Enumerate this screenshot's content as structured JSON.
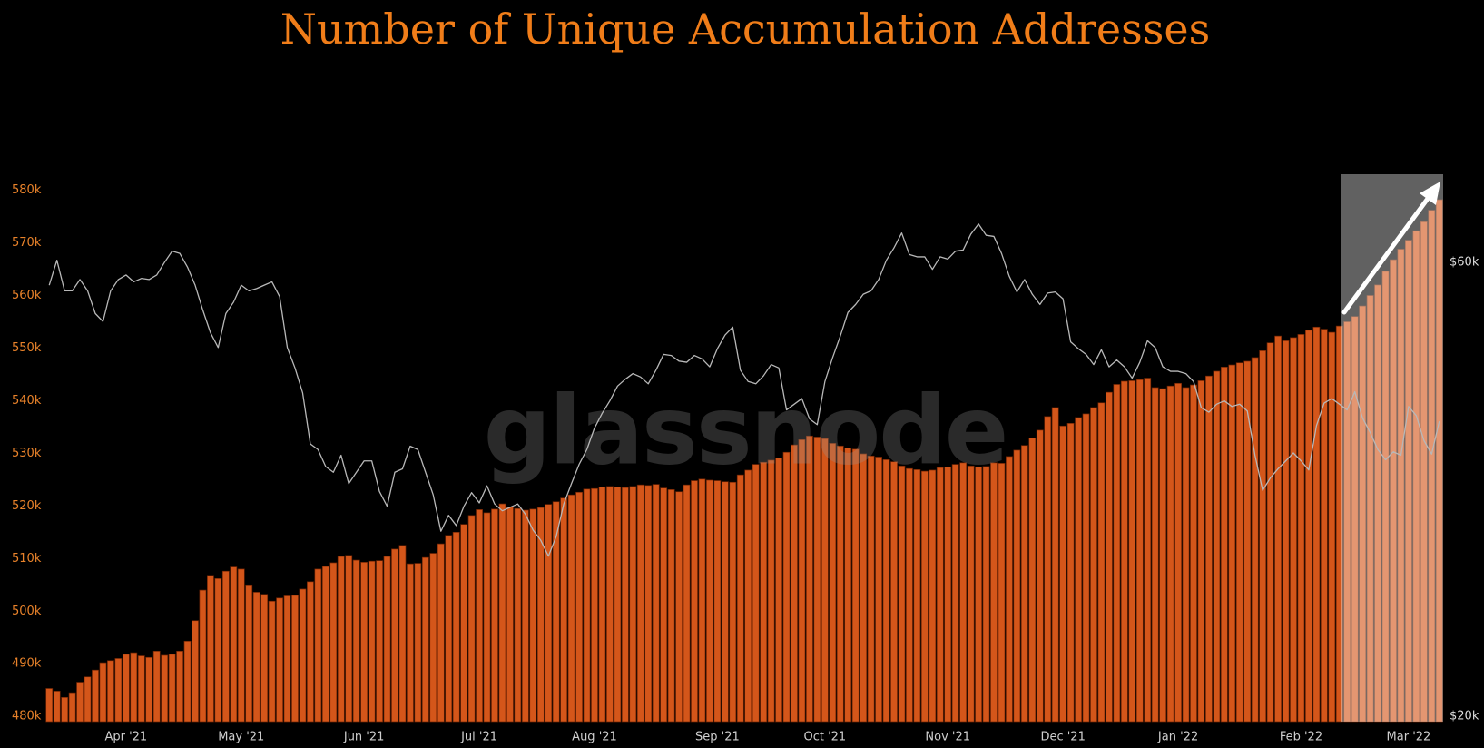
{
  "chart_data": {
    "type": "bar",
    "title": "Number of Unique Accumulation Addresses",
    "watermark": "glassnode",
    "grid": false,
    "ylim": [
      479,
      582
    ],
    "yticks": [
      {
        "value": 480,
        "label": "480k"
      },
      {
        "value": 490,
        "label": "490k"
      },
      {
        "value": 500,
        "label": "500k"
      },
      {
        "value": 510,
        "label": "510k"
      },
      {
        "value": 520,
        "label": "520k"
      },
      {
        "value": 530,
        "label": "530k"
      },
      {
        "value": 540,
        "label": "540k"
      },
      {
        "value": 550,
        "label": "550k"
      },
      {
        "value": 560,
        "label": "560k"
      },
      {
        "value": 570,
        "label": "570k"
      },
      {
        "value": 580,
        "label": "580k"
      }
    ],
    "y2lim": [
      19.5,
      67.3
    ],
    "y2ticks": [
      {
        "value": 20,
        "label": "$20k"
      },
      {
        "value": 60,
        "label": "$60k"
      }
    ],
    "categories": [
      null,
      null,
      null,
      null,
      null,
      null,
      null,
      null,
      null,
      null,
      "Apr '21",
      null,
      null,
      null,
      null,
      null,
      null,
      null,
      null,
      null,
      null,
      null,
      null,
      null,
      null,
      "May '21",
      null,
      null,
      null,
      null,
      null,
      null,
      null,
      null,
      null,
      null,
      null,
      null,
      null,
      null,
      null,
      "Jun '21",
      null,
      null,
      null,
      null,
      null,
      null,
      null,
      null,
      null,
      null,
      null,
      null,
      null,
      null,
      "Jul '21",
      null,
      null,
      null,
      null,
      null,
      null,
      null,
      null,
      null,
      null,
      null,
      null,
      null,
      null,
      "Aug '21",
      null,
      null,
      null,
      null,
      null,
      null,
      null,
      null,
      null,
      null,
      null,
      null,
      null,
      null,
      null,
      "Sep '21",
      null,
      null,
      null,
      null,
      null,
      null,
      null,
      null,
      null,
      null,
      null,
      null,
      null,
      "Oct '21",
      null,
      null,
      null,
      null,
      null,
      null,
      null,
      null,
      null,
      null,
      null,
      null,
      null,
      null,
      null,
      "Nov '21",
      null,
      null,
      null,
      null,
      null,
      null,
      null,
      null,
      null,
      null,
      null,
      null,
      null,
      null,
      "Dec '21",
      null,
      null,
      null,
      null,
      null,
      null,
      null,
      null,
      null,
      null,
      null,
      null,
      null,
      null,
      "Jan '22",
      null,
      null,
      null,
      null,
      null,
      null,
      null,
      null,
      null,
      null,
      null,
      null,
      null,
      null,
      null,
      "Feb '22",
      null,
      null,
      null,
      null,
      null,
      null,
      null,
      null,
      null,
      null,
      null,
      null,
      null,
      "Mar '22",
      null,
      null,
      null,
      null
    ],
    "series": [
      {
        "type": "bar",
        "color": "#d4561a",
        "values": [
          485.3,
          484.8,
          483.6,
          484.5,
          486.5,
          487.5,
          488.8,
          490.2,
          490.6,
          491,
          491.8,
          492.1,
          491.5,
          491.2,
          492.4,
          491.6,
          491.8,
          492.4,
          494.3,
          498.2,
          504,
          506.8,
          506.2,
          507.6,
          508.4,
          508,
          505,
          503.6,
          503.2,
          501.9,
          502.5,
          502.9,
          503,
          504.2,
          505.6,
          508,
          508.5,
          509.2,
          510.4,
          510.6,
          509.7,
          509.3,
          509.5,
          509.6,
          510.4,
          511.8,
          512.5,
          509,
          509.1,
          510.2,
          511,
          512.8,
          514.4,
          515,
          516.5,
          518.2,
          519.3,
          518.7,
          519.4,
          520.4,
          519.8,
          519.5,
          519.2,
          519.4,
          519.7,
          520.3,
          520.8,
          521.5,
          522.1,
          522.6,
          523.2,
          523.3,
          523.6,
          523.7,
          523.6,
          523.5,
          523.7,
          524,
          523.9,
          524.1,
          523.4,
          523.1,
          522.7,
          524,
          524.8,
          525.1,
          524.9,
          524.8,
          524.6,
          524.5,
          525.9,
          526.8,
          527.9,
          528.3,
          528.7,
          529.1,
          530.2,
          531.6,
          532.6,
          533.3,
          533.1,
          532.8,
          531.9,
          531.4,
          531,
          530.8,
          529.9,
          529.5,
          529.3,
          528.8,
          528.4,
          527.6,
          527.1,
          526.9,
          526.6,
          526.8,
          527.3,
          527.4,
          527.9,
          528.2,
          527.6,
          527.4,
          527.5,
          528.2,
          528.1,
          529.4,
          530.6,
          531.5,
          532.9,
          534.4,
          537,
          538.7,
          535.2,
          535.7,
          536.8,
          537.5,
          538.7,
          539.6,
          541.6,
          543.1,
          543.7,
          543.8,
          544,
          544.3,
          542.5,
          542.3,
          542.8,
          543.3,
          542.5,
          543,
          543.8,
          544.7,
          545.6,
          546.4,
          546.8,
          547.2,
          547.5,
          548.2,
          549.5,
          551,
          552.3,
          551.4,
          552,
          552.6,
          553.4,
          554,
          553.6,
          553,
          554.2,
          555,
          556,
          558,
          560,
          562,
          564.6,
          566.8,
          568.8,
          570.5,
          572.3,
          574,
          576.2,
          578.2
        ]
      },
      {
        "type": "line",
        "axis": "y2",
        "color": "#b8b8b8",
        "values": [
          58,
          60.2,
          57.5,
          57.5,
          58.5,
          57.5,
          55.5,
          54.8,
          57.5,
          58.5,
          58.9,
          58.3,
          58.6,
          58.5,
          58.9,
          60,
          61,
          60.8,
          59.6,
          58,
          55.8,
          53.8,
          52.5,
          55.5,
          56.5,
          58,
          57.5,
          57.7,
          58,
          58.3,
          57,
          52.5,
          50.7,
          48.5,
          44,
          43.5,
          42,
          41.5,
          43,
          40.5,
          41.5,
          42.5,
          42.5,
          39.8,
          38.5,
          41.5,
          41.8,
          43.8,
          43.5,
          41.5,
          39.5,
          36.3,
          37.7,
          36.8,
          38.5,
          39.7,
          38.8,
          40.3,
          38.7,
          38.1,
          38.4,
          38.7,
          37.8,
          36.4,
          35.5,
          34.1,
          35.8,
          38.7,
          40.5,
          42.2,
          43.5,
          45.4,
          46.7,
          47.8,
          49.1,
          49.7,
          50.2,
          49.9,
          49.3,
          50.5,
          51.9,
          51.8,
          51.3,
          51.2,
          51.8,
          51.5,
          50.8,
          52.4,
          53.6,
          54.3,
          50.5,
          49.5,
          49.3,
          50,
          51,
          50.7,
          47,
          47.5,
          48,
          46.2,
          45.7,
          49.5,
          51.6,
          53.5,
          55.6,
          56.3,
          57.2,
          57.5,
          58.5,
          60.2,
          61.3,
          62.6,
          60.7,
          60.5,
          60.5,
          59.4,
          60.5,
          60.3,
          61,
          61.1,
          62.5,
          63.4,
          62.4,
          62.3,
          60.8,
          58.8,
          57.4,
          58.5,
          57.2,
          56.3,
          57.3,
          57.4,
          56.8,
          53,
          52.4,
          51.9,
          51,
          52.3,
          50.8,
          51.4,
          50.8,
          49.8,
          51.2,
          53.1,
          52.5,
          50.8,
          50.4,
          50.4,
          50.2,
          49.5,
          47.2,
          46.8,
          47.5,
          47.8,
          47.3,
          47.5,
          46.9,
          43,
          39.9,
          41,
          41.8,
          42.5,
          43.2,
          42.5,
          41.7,
          45.6,
          47.6,
          48,
          47.5,
          47,
          48.6,
          46.3,
          45,
          43.5,
          42.6,
          43.3,
          43,
          47.3,
          46.5,
          44.3,
          43.1,
          46
        ]
      }
    ]
  }
}
